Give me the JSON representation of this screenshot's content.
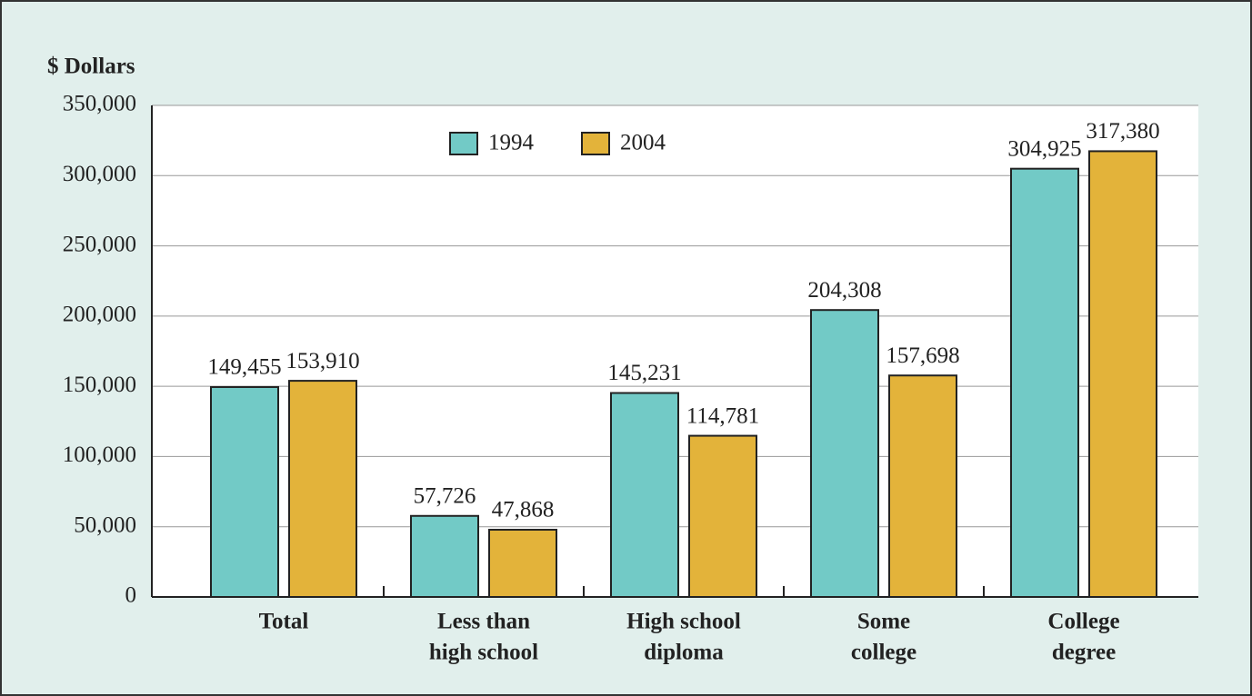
{
  "chart_data": {
    "type": "bar",
    "y_label": "$ Dollars",
    "categories": [
      [
        "Total"
      ],
      [
        "Less than",
        "high school"
      ],
      [
        "High school",
        "diploma"
      ],
      [
        "Some",
        "college"
      ],
      [
        "College",
        "degree"
      ]
    ],
    "series": [
      {
        "name": "1994",
        "color": "#72cac6",
        "values": [
          149455,
          57726,
          145231,
          204308,
          304925
        ],
        "value_labels": [
          "149,455",
          "57,726",
          "145,231",
          "204,308",
          "304,925"
        ]
      },
      {
        "name": "2004",
        "color": "#e3b33a",
        "values": [
          153910,
          47868,
          114781,
          157698,
          317380
        ],
        "value_labels": [
          "153,910",
          "47,868",
          "114,781",
          "157,698",
          "317,380"
        ]
      }
    ],
    "ylim": [
      0,
      350000
    ],
    "yticks": [
      0,
      {
        "value": 50000,
        "label": "50,000"
      },
      {
        "value": 100000,
        "label": "100,000"
      },
      {
        "value": 150000,
        "label": "150,000"
      },
      {
        "value": 200000,
        "label": "200,000"
      },
      {
        "value": 250000,
        "label": "250,000"
      },
      {
        "value": 300000,
        "label": "300,000"
      },
      {
        "value": 350000,
        "label": "350,000"
      }
    ],
    "grid": true
  }
}
